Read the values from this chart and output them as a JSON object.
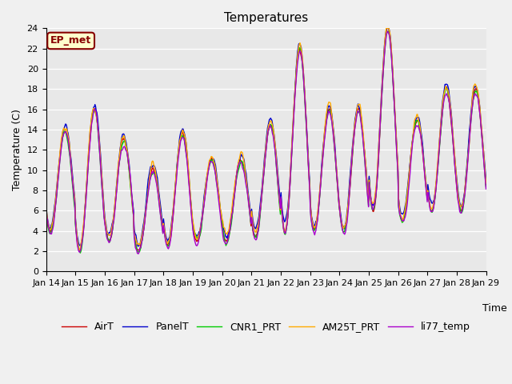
{
  "title": "Temperatures",
  "ylabel": "Temperature (C)",
  "xlabel": "Time",
  "ylim": [
    0,
    24
  ],
  "fig_bg_color": "#f0f0f0",
  "plot_bg_color": "#e8e8e8",
  "series": {
    "AirT": {
      "color": "#cc0000",
      "lw": 1.0
    },
    "PanelT": {
      "color": "#0000cc",
      "lw": 1.0
    },
    "CNR1_PRT": {
      "color": "#00cc00",
      "lw": 1.0
    },
    "AM25T_PRT": {
      "color": "#ffaa00",
      "lw": 1.0
    },
    "li77_temp": {
      "color": "#aa00cc",
      "lw": 1.0
    }
  },
  "x_tick_labels": [
    "Jan 14",
    "Jan 15",
    "Jan 16",
    "Jan 17",
    "Jan 18",
    "Jan 19",
    "Jan 20",
    "Jan 21",
    "Jan 22",
    "Jan 23",
    "Jan 24",
    "Jan 25",
    "Jan 26",
    "Jan 27",
    "Jan 28",
    "Jan 29"
  ],
  "x_tick_positions": [
    0,
    1,
    2,
    3,
    4,
    5,
    6,
    7,
    8,
    9,
    10,
    11,
    12,
    13,
    14,
    15
  ],
  "n_days": 15,
  "ep_met_label": "EP_met",
  "ep_met_bg": "#ffffcc",
  "ep_met_border": "#880000",
  "ep_met_color": "#880000"
}
